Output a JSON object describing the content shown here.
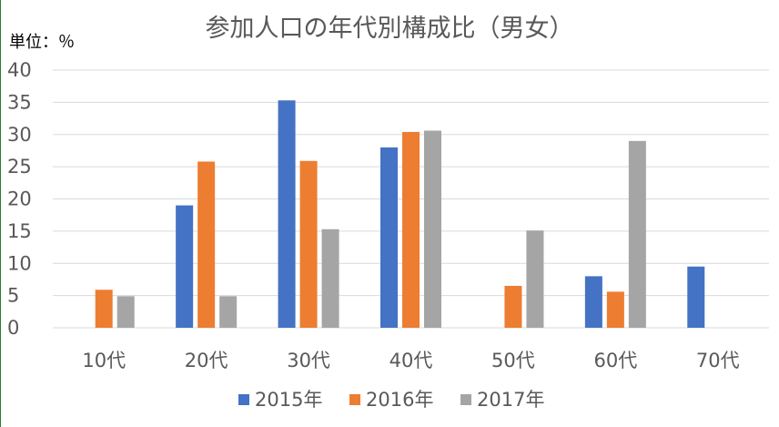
{
  "chart_data": {
    "type": "bar",
    "title": "参加人口の年代別構成比（男女）",
    "unit_label": "単位：％",
    "categories": [
      "10代",
      "20代",
      "30代",
      "40代",
      "50代",
      "60代",
      "70代"
    ],
    "series": [
      {
        "name": "2015年",
        "color": "#4472c4",
        "values": [
          null,
          19,
          35.3,
          28,
          null,
          8,
          9.5
        ]
      },
      {
        "name": "2016年",
        "color": "#ed7d31",
        "values": [
          5.9,
          25.8,
          25.9,
          30.4,
          6.5,
          5.6,
          null
        ]
      },
      {
        "name": "2017年",
        "color": "#a5a5a5",
        "values": [
          4.9,
          4.9,
          15.3,
          30.6,
          15.1,
          29,
          null
        ]
      }
    ],
    "ylim": [
      0,
      40
    ],
    "yticks": [
      0,
      5,
      10,
      15,
      20,
      25,
      30,
      35,
      40
    ],
    "grid": true,
    "legend_position": "bottom"
  }
}
